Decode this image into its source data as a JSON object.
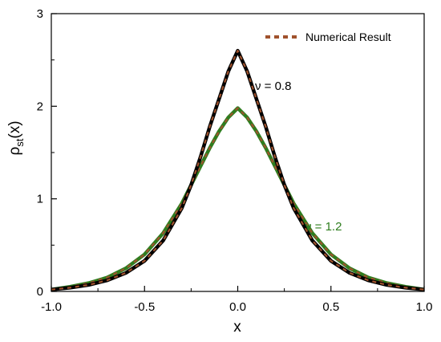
{
  "chart_data": {
    "type": "line",
    "xlabel": "x",
    "ylabel_main": "ρ",
    "ylabel_sub": "st",
    "ylabel_arg": "(x)",
    "xlim": [
      -1.0,
      1.0
    ],
    "ylim": [
      0,
      3
    ],
    "x_ticks": [
      -1.0,
      -0.5,
      0.0,
      0.5,
      1.0
    ],
    "x_tick_labels": [
      "-1.0",
      "-0.5",
      "0.0",
      "0.5",
      "1.0"
    ],
    "y_ticks": [
      0,
      1,
      2,
      3
    ],
    "y_tick_labels": [
      "0",
      "1",
      "2",
      "3"
    ],
    "grid": false,
    "legend_position": "top-right",
    "legend": [
      {
        "label": "Numerical Result",
        "style": "dashed",
        "color": "#a0522d"
      }
    ],
    "annotations": [
      {
        "text": "ν = 0.8",
        "color": "#000000",
        "x": 0.1,
        "y": 2.23
      },
      {
        "text": "ν = 1.2",
        "color": "#2e7d1e",
        "x": 0.37,
        "y": 0.7
      }
    ],
    "series": [
      {
        "label": "ν = 0.8",
        "color": "#000000",
        "x": [
          -1.0,
          -0.9,
          -0.8,
          -0.7,
          -0.6,
          -0.5,
          -0.4,
          -0.3,
          -0.25,
          -0.2,
          -0.15,
          -0.1,
          -0.05,
          0.0,
          0.05,
          0.1,
          0.15,
          0.2,
          0.25,
          0.3,
          0.4,
          0.5,
          0.6,
          0.7,
          0.8,
          0.9,
          1.0
        ],
        "y": [
          0.02,
          0.04,
          0.07,
          0.12,
          0.2,
          0.33,
          0.55,
          0.9,
          1.15,
          1.45,
          1.78,
          2.08,
          2.38,
          2.6,
          2.38,
          2.08,
          1.78,
          1.45,
          1.15,
          0.9,
          0.55,
          0.33,
          0.2,
          0.12,
          0.07,
          0.04,
          0.02
        ]
      },
      {
        "label": "ν = 1.2",
        "color": "#2e7d1e",
        "x": [
          -1.0,
          -0.9,
          -0.8,
          -0.7,
          -0.6,
          -0.5,
          -0.4,
          -0.3,
          -0.25,
          -0.2,
          -0.15,
          -0.1,
          -0.05,
          0.0,
          0.05,
          0.1,
          0.15,
          0.2,
          0.25,
          0.3,
          0.4,
          0.5,
          0.6,
          0.7,
          0.8,
          0.9,
          1.0
        ],
        "y": [
          0.02,
          0.05,
          0.09,
          0.15,
          0.25,
          0.4,
          0.63,
          0.95,
          1.15,
          1.35,
          1.55,
          1.73,
          1.88,
          1.98,
          1.88,
          1.73,
          1.55,
          1.35,
          1.15,
          0.95,
          0.63,
          0.4,
          0.25,
          0.15,
          0.09,
          0.05,
          0.02
        ]
      }
    ]
  }
}
